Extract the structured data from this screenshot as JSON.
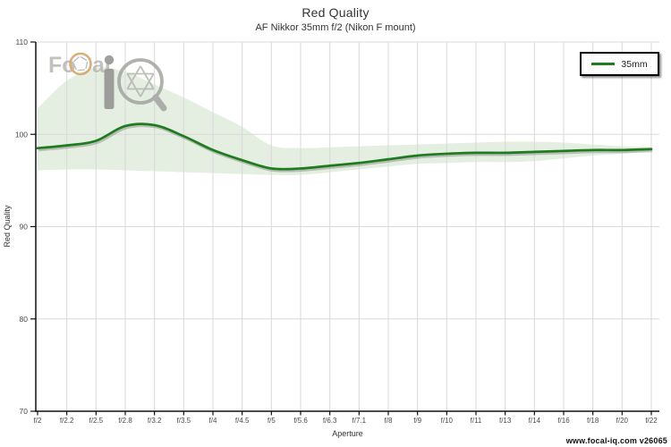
{
  "title": "Red Quality",
  "subtitle": "AF Nikkor 35mm f/2 (Nikon F mount)",
  "footer": "www.focal-iq.com  v26065",
  "legend": {
    "label": "35mm"
  },
  "watermark": {
    "text_fo": "Fo",
    "text_al": "al",
    "letter_i": "i",
    "colors": {
      "letters": "#b7b7b3",
      "dark_letter": "#90908c",
      "ring": "#d4a05c",
      "glass": "#a4a4a0",
      "blades": "#b4b4b0"
    }
  },
  "chart_data": {
    "type": "line",
    "title": "Red Quality",
    "subtitle": "AF Nikkor 35mm f/2 (Nikon F mount)",
    "xlabel": "Aperture",
    "ylabel": "Red Quality",
    "categories": [
      "f/2",
      "f/2.2",
      "f/2.5",
      "f/2.8",
      "f/3.2",
      "f/3.5",
      "f/4",
      "f/4.5",
      "f/5",
      "f/5.6",
      "f/6.3",
      "f/7.1",
      "f/8",
      "f/9",
      "f/10",
      "f/11",
      "f/13",
      "f/14",
      "f/16",
      "f/18",
      "f/20",
      "f/22"
    ],
    "series": [
      {
        "name": "35mm",
        "values": [
          98.5,
          98.8,
          99.3,
          100.9,
          101.0,
          99.8,
          98.3,
          97.2,
          96.3,
          96.3,
          96.6,
          96.9,
          97.3,
          97.7,
          97.9,
          98.0,
          98.0,
          98.1,
          98.2,
          98.3,
          98.3,
          98.4
        ],
        "band_upper": [
          102.8,
          105.8,
          107.2,
          106.8,
          105.4,
          104.0,
          102.4,
          100.8,
          98.8,
          98.5,
          98.6,
          98.7,
          98.8,
          98.9,
          99.0,
          99.1,
          99.2,
          99.2,
          99.1,
          98.9,
          98.7,
          98.6
        ],
        "band_lower": [
          96.1,
          96.2,
          96.2,
          96.1,
          96.0,
          95.9,
          95.8,
          95.7,
          95.6,
          95.6,
          95.9,
          96.2,
          96.5,
          96.8,
          96.9,
          97.0,
          97.0,
          97.1,
          97.4,
          97.7,
          97.9,
          98.2
        ]
      }
    ],
    "ylim": [
      70,
      110
    ],
    "yticks": [
      70,
      80,
      90,
      100,
      110
    ],
    "grid": true,
    "legend_position": "top-right",
    "colors": {
      "line": "#1e7b1e",
      "band": "#e4eee1",
      "grid": "#d9d9d9",
      "axis": "#111111",
      "tick_label": "#4a4a4a"
    }
  }
}
